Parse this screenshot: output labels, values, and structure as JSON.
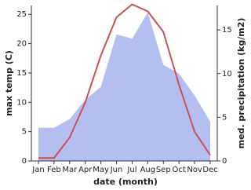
{
  "chart_data": {
    "type": "line",
    "xlabel": "date (month)",
    "ylabel": "max temp (C)",
    "y2label": "med. precipitation (kg/m2)",
    "categories": [
      "Jan",
      "Feb",
      "Mar",
      "Apr",
      "May",
      "Jun",
      "Jul",
      "Aug",
      "Sep",
      "Oct",
      "Nov",
      "Dec"
    ],
    "series": [
      {
        "kind": "area",
        "axis": "y2",
        "color": "#b4bef0",
        "values": [
          3.8,
          3.8,
          4.8,
          7,
          8.5,
          14.5,
          14,
          17,
          11,
          10,
          7.5,
          4.5
        ]
      },
      {
        "kind": "line",
        "axis": "y",
        "color": "#c8525a",
        "values": [
          0.5,
          0.5,
          4,
          10,
          18,
          24.5,
          26.7,
          25.5,
          22,
          13,
          5,
          1
        ]
      }
    ],
    "ylim": [
      0,
      26.5
    ],
    "yticks": [
      0,
      5,
      10,
      15,
      20,
      25
    ],
    "y2lim": [
      0,
      17.8
    ],
    "y2ticks": [
      0,
      5,
      10,
      15
    ]
  }
}
